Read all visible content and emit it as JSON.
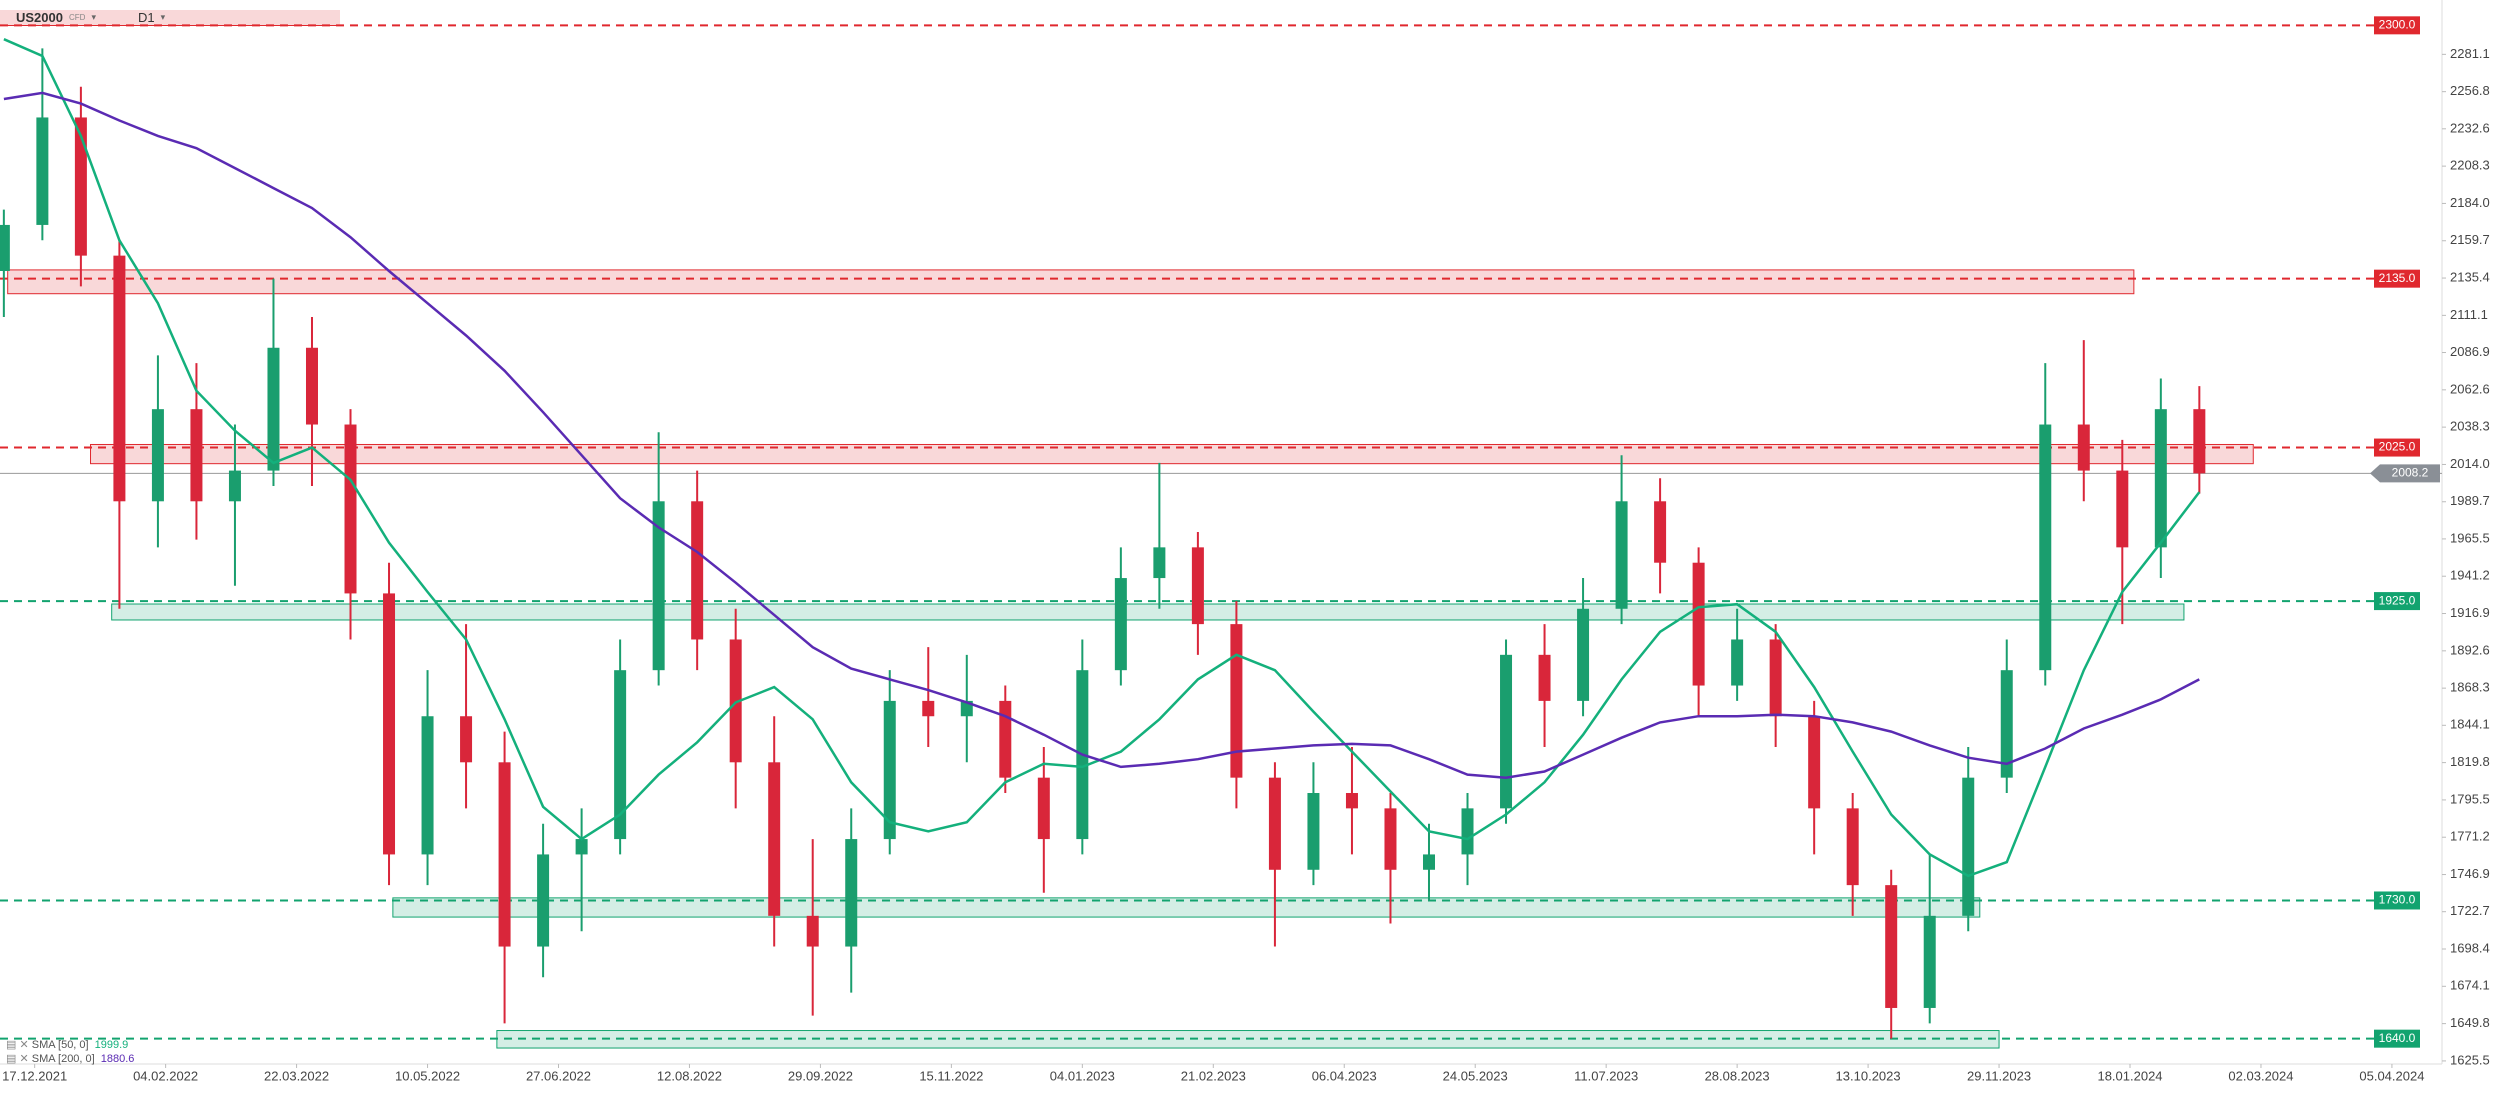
{
  "header": {
    "symbol": "US2000",
    "symbol_type": "CFD",
    "timeframe": "D1"
  },
  "chart_data": {
    "type": "candlestick",
    "candles": {
      "open": [
        2140,
        2170,
        2240,
        2150,
        1990,
        2050,
        1990,
        2010,
        2090,
        2040,
        1930,
        1760,
        1850,
        1820,
        1700,
        1760,
        1770,
        1880,
        1990,
        1900,
        1820,
        1720,
        1700,
        1770,
        1860,
        1850,
        1860,
        1810,
        1770,
        1880,
        1940,
        1960,
        1910,
        1810,
        1750,
        1800,
        1790,
        1750,
        1760,
        1790,
        1890,
        1860,
        1920,
        1990,
        1950,
        1870,
        1900,
        1850,
        1790,
        1740,
        1660,
        1720,
        1810,
        1880,
        2040,
        2010,
        1960,
        2050
      ],
      "high": [
        2180,
        2285,
        2260,
        2160,
        2085,
        2080,
        2040,
        2135,
        2110,
        2050,
        1950,
        1880,
        1910,
        1840,
        1780,
        1790,
        1900,
        2035,
        2010,
        1920,
        1850,
        1770,
        1790,
        1880,
        1895,
        1890,
        1870,
        1830,
        1900,
        1960,
        2015,
        1970,
        1925,
        1820,
        1820,
        1830,
        1800,
        1780,
        1800,
        1900,
        1910,
        1940,
        2020,
        2005,
        1960,
        1920,
        1910,
        1860,
        1800,
        1750,
        1760,
        1830,
        1900,
        2080,
        2095,
        2030,
        2070,
        2065
      ],
      "low": [
        2110,
        2160,
        2130,
        1920,
        1960,
        1965,
        1935,
        2000,
        2000,
        1900,
        1740,
        1740,
        1790,
        1650,
        1680,
        1710,
        1760,
        1870,
        1880,
        1790,
        1700,
        1655,
        1670,
        1760,
        1830,
        1820,
        1800,
        1735,
        1760,
        1870,
        1920,
        1890,
        1790,
        1700,
        1740,
        1760,
        1715,
        1730,
        1740,
        1780,
        1830,
        1850,
        1910,
        1930,
        1850,
        1860,
        1830,
        1760,
        1720,
        1640,
        1650,
        1710,
        1800,
        1870,
        1990,
        1910,
        1940,
        1995
      ],
      "close": [
        2170,
        2240,
        2150,
        1990,
        2050,
        1990,
        2010,
        2090,
        2040,
        1930,
        1760,
        1850,
        1820,
        1700,
        1760,
        1770,
        1880,
        1990,
        1900,
        1820,
        1720,
        1700,
        1770,
        1860,
        1850,
        1860,
        1810,
        1770,
        1880,
        1940,
        1960,
        1910,
        1810,
        1750,
        1800,
        1790,
        1750,
        1760,
        1790,
        1890,
        1860,
        1920,
        1990,
        1950,
        1870,
        1900,
        1850,
        1790,
        1740,
        1660,
        1720,
        1810,
        1880,
        2040,
        2010,
        1960,
        2050,
        2008.2
      ],
      "up_color": "#1a9e6e",
      "down_color": "#d9263a"
    },
    "series": [
      {
        "name": "SMA [50, 0]",
        "last": 1999.9,
        "color": "#14b07c",
        "values": [
          2291,
          2280,
          2228,
          2160,
          2119,
          2062,
          2036,
          2015,
          2025,
          2004,
          1963,
          1931,
          1900,
          1848,
          1791,
          1770,
          1786,
          1812,
          1833,
          1859,
          1869,
          1848,
          1807,
          1781,
          1775,
          1781,
          1807,
          1819,
          1817,
          1827,
          1848,
          1874,
          1890,
          1880,
          1853,
          1827,
          1801,
          1775,
          1770,
          1786,
          1807,
          1838,
          1874,
          1905,
          1921,
          1923,
          1905,
          1869,
          1827,
          1786,
          1760,
          1746,
          1755,
          1817,
          1880,
          1931,
          1963,
          1996
        ]
      },
      {
        "name": "SMA [200, 0]",
        "last": 1880.6,
        "color": "#5a2bb3",
        "values": [
          2252,
          2256,
          2249,
          2238,
          2228,
          2220,
          2207,
          2194,
          2181,
          2162,
          2140,
          2119,
          2098,
          2075,
          2048,
          2020,
          1992,
          1973,
          1957,
          1937,
          1916,
          1895,
          1881,
          1874,
          1867,
          1859,
          1850,
          1838,
          1825,
          1817,
          1819,
          1822,
          1827,
          1829,
          1831,
          1832,
          1831,
          1822,
          1812,
          1810,
          1814,
          1825,
          1836,
          1846,
          1850,
          1850,
          1851,
          1850,
          1846,
          1840,
          1831,
          1823,
          1819,
          1829,
          1842,
          1851,
          1861,
          1874
        ]
      }
    ],
    "levels": [
      {
        "value": 2300,
        "label": "2300.0",
        "color": "#e0282e"
      },
      {
        "value": 2135,
        "label": "2135.0",
        "color": "#e0282e",
        "zone": {
          "low": 2125.2,
          "high": 2140.7,
          "from": 0.1,
          "to": 55.3
        }
      },
      {
        "value": 2025,
        "label": "2025.0",
        "color": "#e0282e",
        "zone": {
          "low": 2014.5,
          "high": 2027.0,
          "from": 2.25,
          "to": 58.4
        }
      },
      {
        "value": 1925,
        "label": "1925.0",
        "color": "#12a36f",
        "zone": {
          "low": 1912.7,
          "high": 1923.1,
          "from": 2.8,
          "to": 56.6
        }
      },
      {
        "value": 1730,
        "label": "1730.0",
        "color": "#12a36f",
        "zone": {
          "low": 1719.2,
          "high": 1731.7,
          "from": 10.1,
          "to": 51.3
        }
      },
      {
        "value": 1640,
        "label": "1640.0",
        "color": "#12a36f",
        "zone": {
          "low": 1633.9,
          "high": 1645.3,
          "from": 12.8,
          "to": 51.8
        }
      }
    ],
    "current_price": 2008.2,
    "ylim": [
      1623.5,
      2316.5
    ],
    "yticks": [
      2281.1,
      2256.8,
      2232.6,
      2208.3,
      {
        "value": 2184,
        "label": "2184.0"
      },
      2159.7,
      2135.4,
      2111.1,
      2086.9,
      2062.6,
      2038.3,
      {
        "value": 2014,
        "label": "2014.0"
      },
      1989.7,
      1965.5,
      1941.2,
      1916.9,
      1892.6,
      1868.3,
      1844.1,
      1819.8,
      1795.5,
      1771.2,
      1746.9,
      1722.7,
      1698.4,
      1674.1,
      1649.8,
      1625.5
    ],
    "xlim": [
      -0.1,
      63.3
    ],
    "xticks": [
      {
        "value": 0.8,
        "label": "17.12.2021"
      },
      {
        "value": 4.2,
        "label": "04.02.2022"
      },
      {
        "value": 7.6,
        "label": "22.03.2022"
      },
      {
        "value": 11.0,
        "label": "10.05.2022"
      },
      {
        "value": 14.4,
        "label": "27.06.2022"
      },
      {
        "value": 17.8,
        "label": "12.08.2022"
      },
      {
        "value": 21.2,
        "label": "29.09.2022"
      },
      {
        "value": 24.6,
        "label": "15.11.2022"
      },
      {
        "value": 28.0,
        "label": "04.01.2023"
      },
      {
        "value": 31.4,
        "label": "21.02.2023"
      },
      {
        "value": 34.8,
        "label": "06.04.2023"
      },
      {
        "value": 38.2,
        "label": "24.05.2023"
      },
      {
        "value": 41.6,
        "label": "11.07.2023"
      },
      {
        "value": 45.0,
        "label": "28.08.2023"
      },
      {
        "value": 48.4,
        "label": "13.10.2023"
      },
      {
        "value": 51.8,
        "label": "29.11.2023"
      },
      {
        "value": 55.2,
        "label": "18.01.2024"
      },
      {
        "value": 58.6,
        "label": "02.03.2024"
      },
      {
        "value": 62.0,
        "label": "05.04.2024"
      }
    ]
  }
}
